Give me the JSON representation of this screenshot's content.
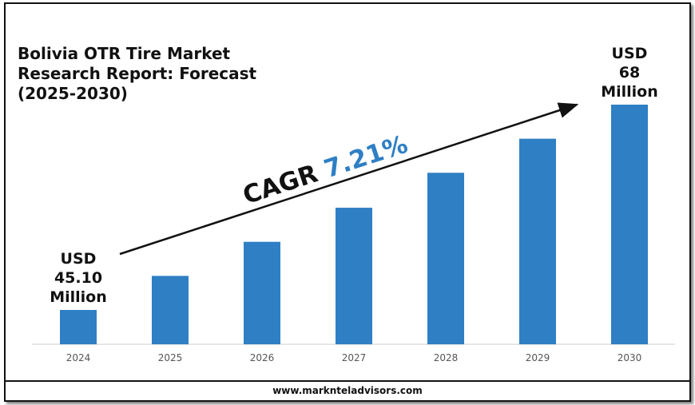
{
  "chart_data": {
    "type": "bar",
    "title": "Bolivia OTR Tire Market Research Report: Forecast (2025-2030)",
    "categories": [
      "2024",
      "2025",
      "2026",
      "2027",
      "2028",
      "2029",
      "2030"
    ],
    "values": [
      45.1,
      48.9,
      52.7,
      56.5,
      60.4,
      64.2,
      68
    ],
    "value_labels": [
      "USD 45.10 Million",
      null,
      null,
      null,
      null,
      null,
      "USD 68 Million"
    ],
    "color": "#2e7fc4",
    "ylim": [
      41.27,
      68
    ],
    "annotation": {
      "label": "CAGR",
      "value": "7.21%"
    },
    "footer": "www.marknteladvisors.com"
  }
}
